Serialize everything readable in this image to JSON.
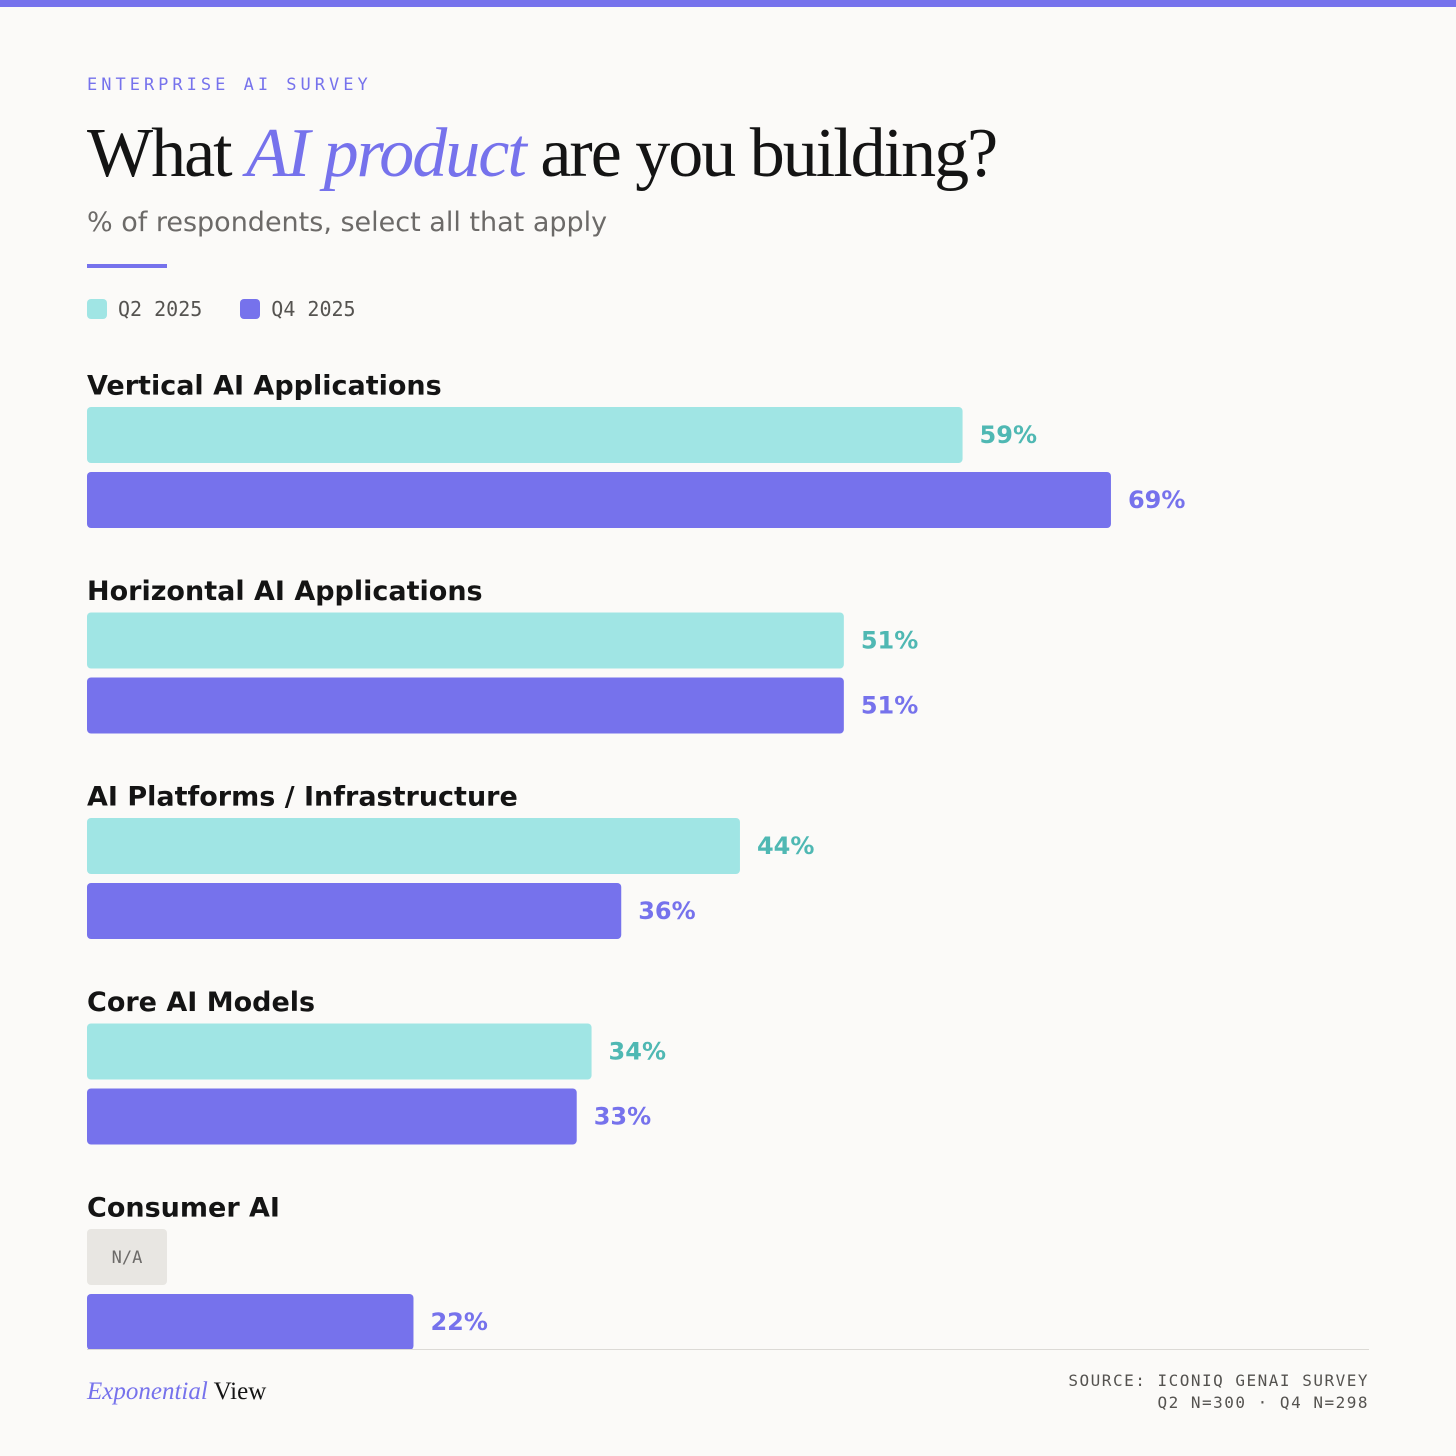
{
  "header": {
    "eyebrow": "ENTERPRISE AI SURVEY",
    "title_part1": "What ",
    "title_accent": "AI product",
    "title_part2": " are you building?",
    "subtitle": "% of respondents, select all that apply"
  },
  "legend": {
    "items": [
      {
        "label": "Q2 2025",
        "color": "#a0e5e4"
      },
      {
        "label": "Q4 2025",
        "color": "#7672ec"
      }
    ]
  },
  "chart_data": {
    "type": "bar",
    "orientation": "horizontal",
    "categories": [
      "Vertical AI Applications",
      "Horizontal AI Applications",
      "AI Platforms / Infrastructure",
      "Core AI Models",
      "Consumer AI"
    ],
    "series": [
      {
        "name": "Q2 2025",
        "values": [
          59,
          51,
          44,
          34,
          null
        ],
        "labels": [
          "59%",
          "51%",
          "44%",
          "34%",
          "N/A"
        ],
        "color": "#a0e5e4",
        "label_color": "#4fb8b3"
      },
      {
        "name": "Q4 2025",
        "values": [
          69,
          51,
          36,
          33,
          22
        ],
        "labels": [
          "69%",
          "51%",
          "36%",
          "33%",
          "22%"
        ],
        "color": "#7672ec",
        "label_color": "#7672ec"
      }
    ],
    "xlim": [
      0,
      100
    ],
    "grid": false,
    "legend_position": "top-left"
  },
  "footer": {
    "brand_part1": "Exponential",
    "brand_part2": " View",
    "source_line1": "SOURCE: ICONIQ GENAI SURVEY",
    "source_line2": "Q2 N=300 · Q4 N=298"
  }
}
